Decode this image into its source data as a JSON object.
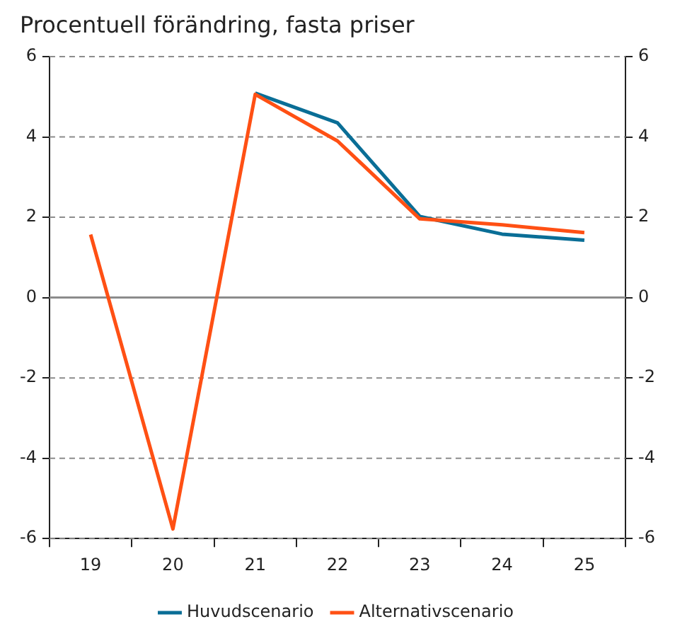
{
  "chart_data": {
    "type": "line",
    "title": "Procentuell förändring, fasta priser",
    "categories": [
      "19",
      "20",
      "21",
      "22",
      "23",
      "24",
      "25"
    ],
    "series": [
      {
        "name": "Huvudscenario",
        "color": "#0a6e96",
        "values": [
          null,
          null,
          5.09,
          4.35,
          2.02,
          1.58,
          1.43
        ]
      },
      {
        "name": "Alternativscenario",
        "color": "#ff5014",
        "values": [
          1.57,
          -5.76,
          5.06,
          3.9,
          1.96,
          1.81,
          1.62
        ]
      }
    ],
    "ylim": [
      -6,
      6
    ],
    "yticks": [
      -6,
      -4,
      -2,
      0,
      2,
      4,
      6
    ],
    "y2lim": [
      -6,
      6
    ],
    "y2ticks": [
      -6,
      -4,
      -2,
      0,
      2,
      4,
      6
    ],
    "grid": "y",
    "legend": "bottom",
    "marker": "none",
    "line_style": "solid"
  }
}
